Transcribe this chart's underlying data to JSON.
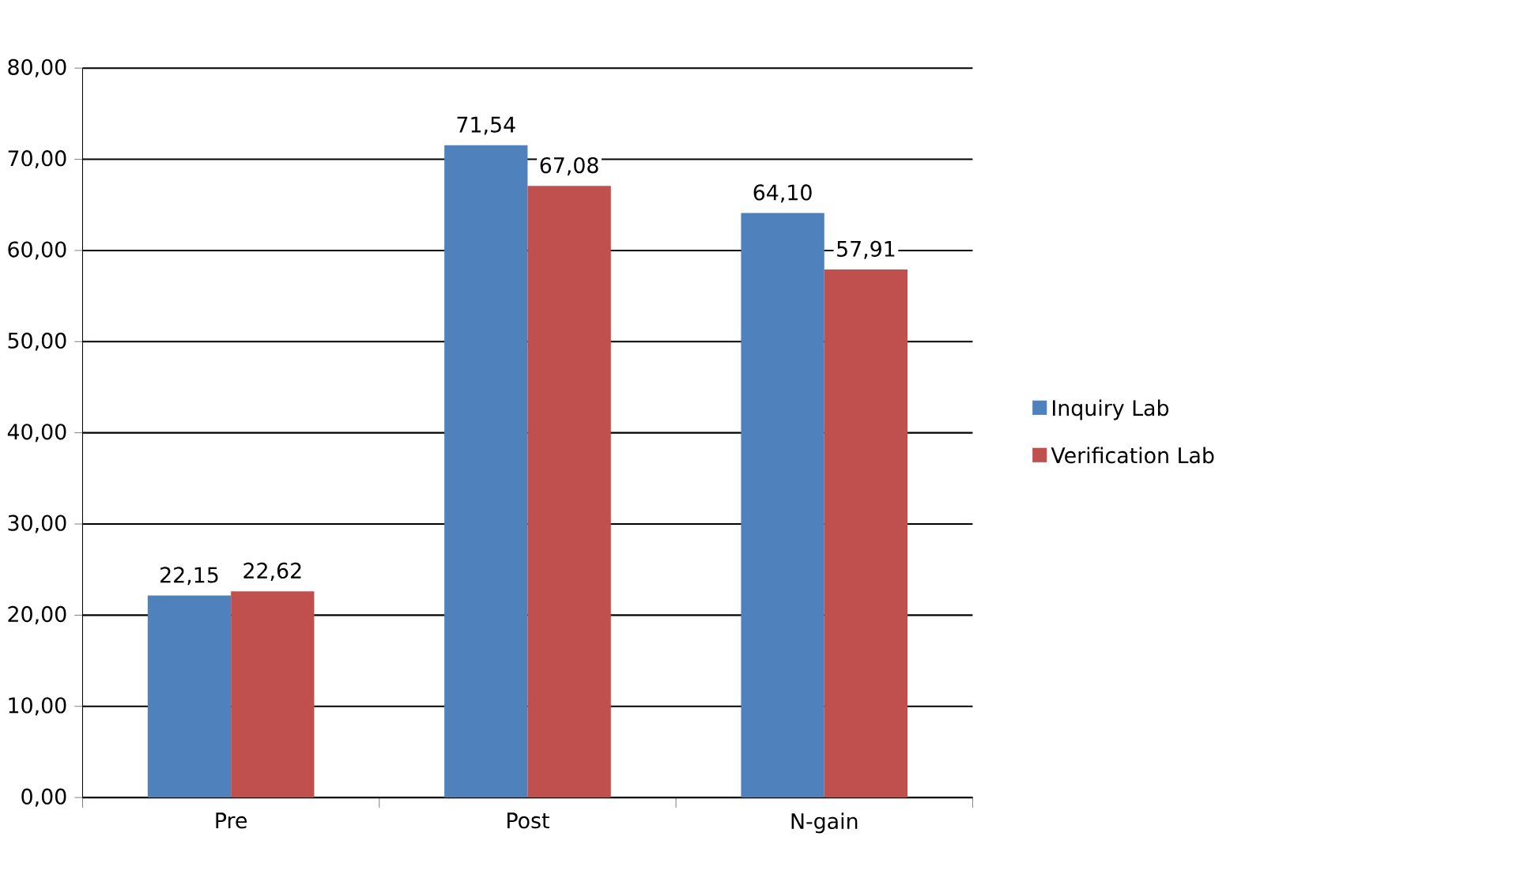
{
  "chart_data": {
    "type": "bar",
    "categories": [
      "Pre",
      "Post",
      "N-gain"
    ],
    "series": [
      {
        "name": "Inquiry Lab",
        "color": "#4f81bd",
        "values": [
          22.15,
          71.54,
          64.1
        ],
        "value_labels": [
          "22,15",
          "71,54",
          "64,10"
        ]
      },
      {
        "name": "Verification Lab",
        "color": "#c0504d",
        "values": [
          22.62,
          67.08,
          57.91
        ],
        "value_labels": [
          "22,62",
          "67,08",
          "57,91"
        ]
      }
    ],
    "ylim": [
      0,
      80
    ],
    "yticks": [
      {
        "value": 0,
        "label": "0,00"
      },
      {
        "value": 10,
        "label": "10,00"
      },
      {
        "value": 20,
        "label": "20,00"
      },
      {
        "value": 30,
        "label": "30,00"
      },
      {
        "value": 40,
        "label": "40,00"
      },
      {
        "value": 50,
        "label": "50,00"
      },
      {
        "value": 60,
        "label": "60,00"
      },
      {
        "value": 70,
        "label": "70,00"
      },
      {
        "value": 80,
        "label": "80,00"
      }
    ],
    "grid": "y",
    "legend": "right"
  }
}
